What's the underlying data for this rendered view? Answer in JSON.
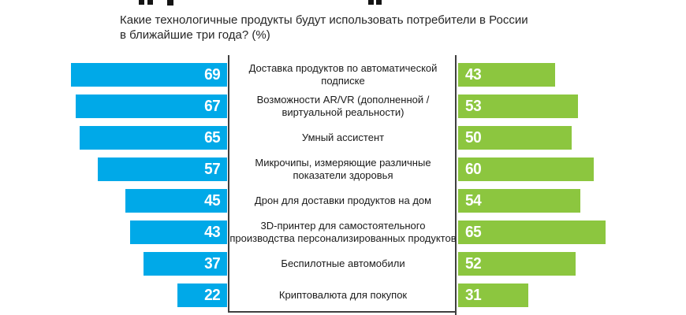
{
  "header": {
    "question_line1": "Какие технологичные  продукты будут использовать потребители в России",
    "question_line2": "в ближайшие три года? (%)"
  },
  "chart_data": {
    "type": "bar",
    "orientation": "horizontal",
    "layout": "butterfly",
    "title": "Какие технологичные продукты будут использовать потребители в России в ближайшие три года? (%)",
    "grid": false,
    "legend_position": "none",
    "categories": [
      "Доставка продуктов по автоматической подписке",
      "Возможности AR/VR (дополненной / виртуальной реальности)",
      "Умный ассистент",
      "Микрочипы, измеряющие различные показатели  здоровья",
      "Дрон для доставки продуктов на дом",
      "3D-принтер для самостоятельного производства персонализированных продуктов",
      "Беспилотные автомобили",
      "Криптовалюта для покупок"
    ],
    "series": [
      {
        "name": "left",
        "color": "#00A9E8",
        "values": [
          69,
          67,
          65,
          57,
          45,
          43,
          37,
          22
        ]
      },
      {
        "name": "right",
        "color": "#8CC63F",
        "values": [
          43,
          53,
          50,
          60,
          54,
          65,
          52,
          31
        ]
      }
    ],
    "value_label_color": "#ffffff",
    "axis_color": "#3f3f3f"
  }
}
